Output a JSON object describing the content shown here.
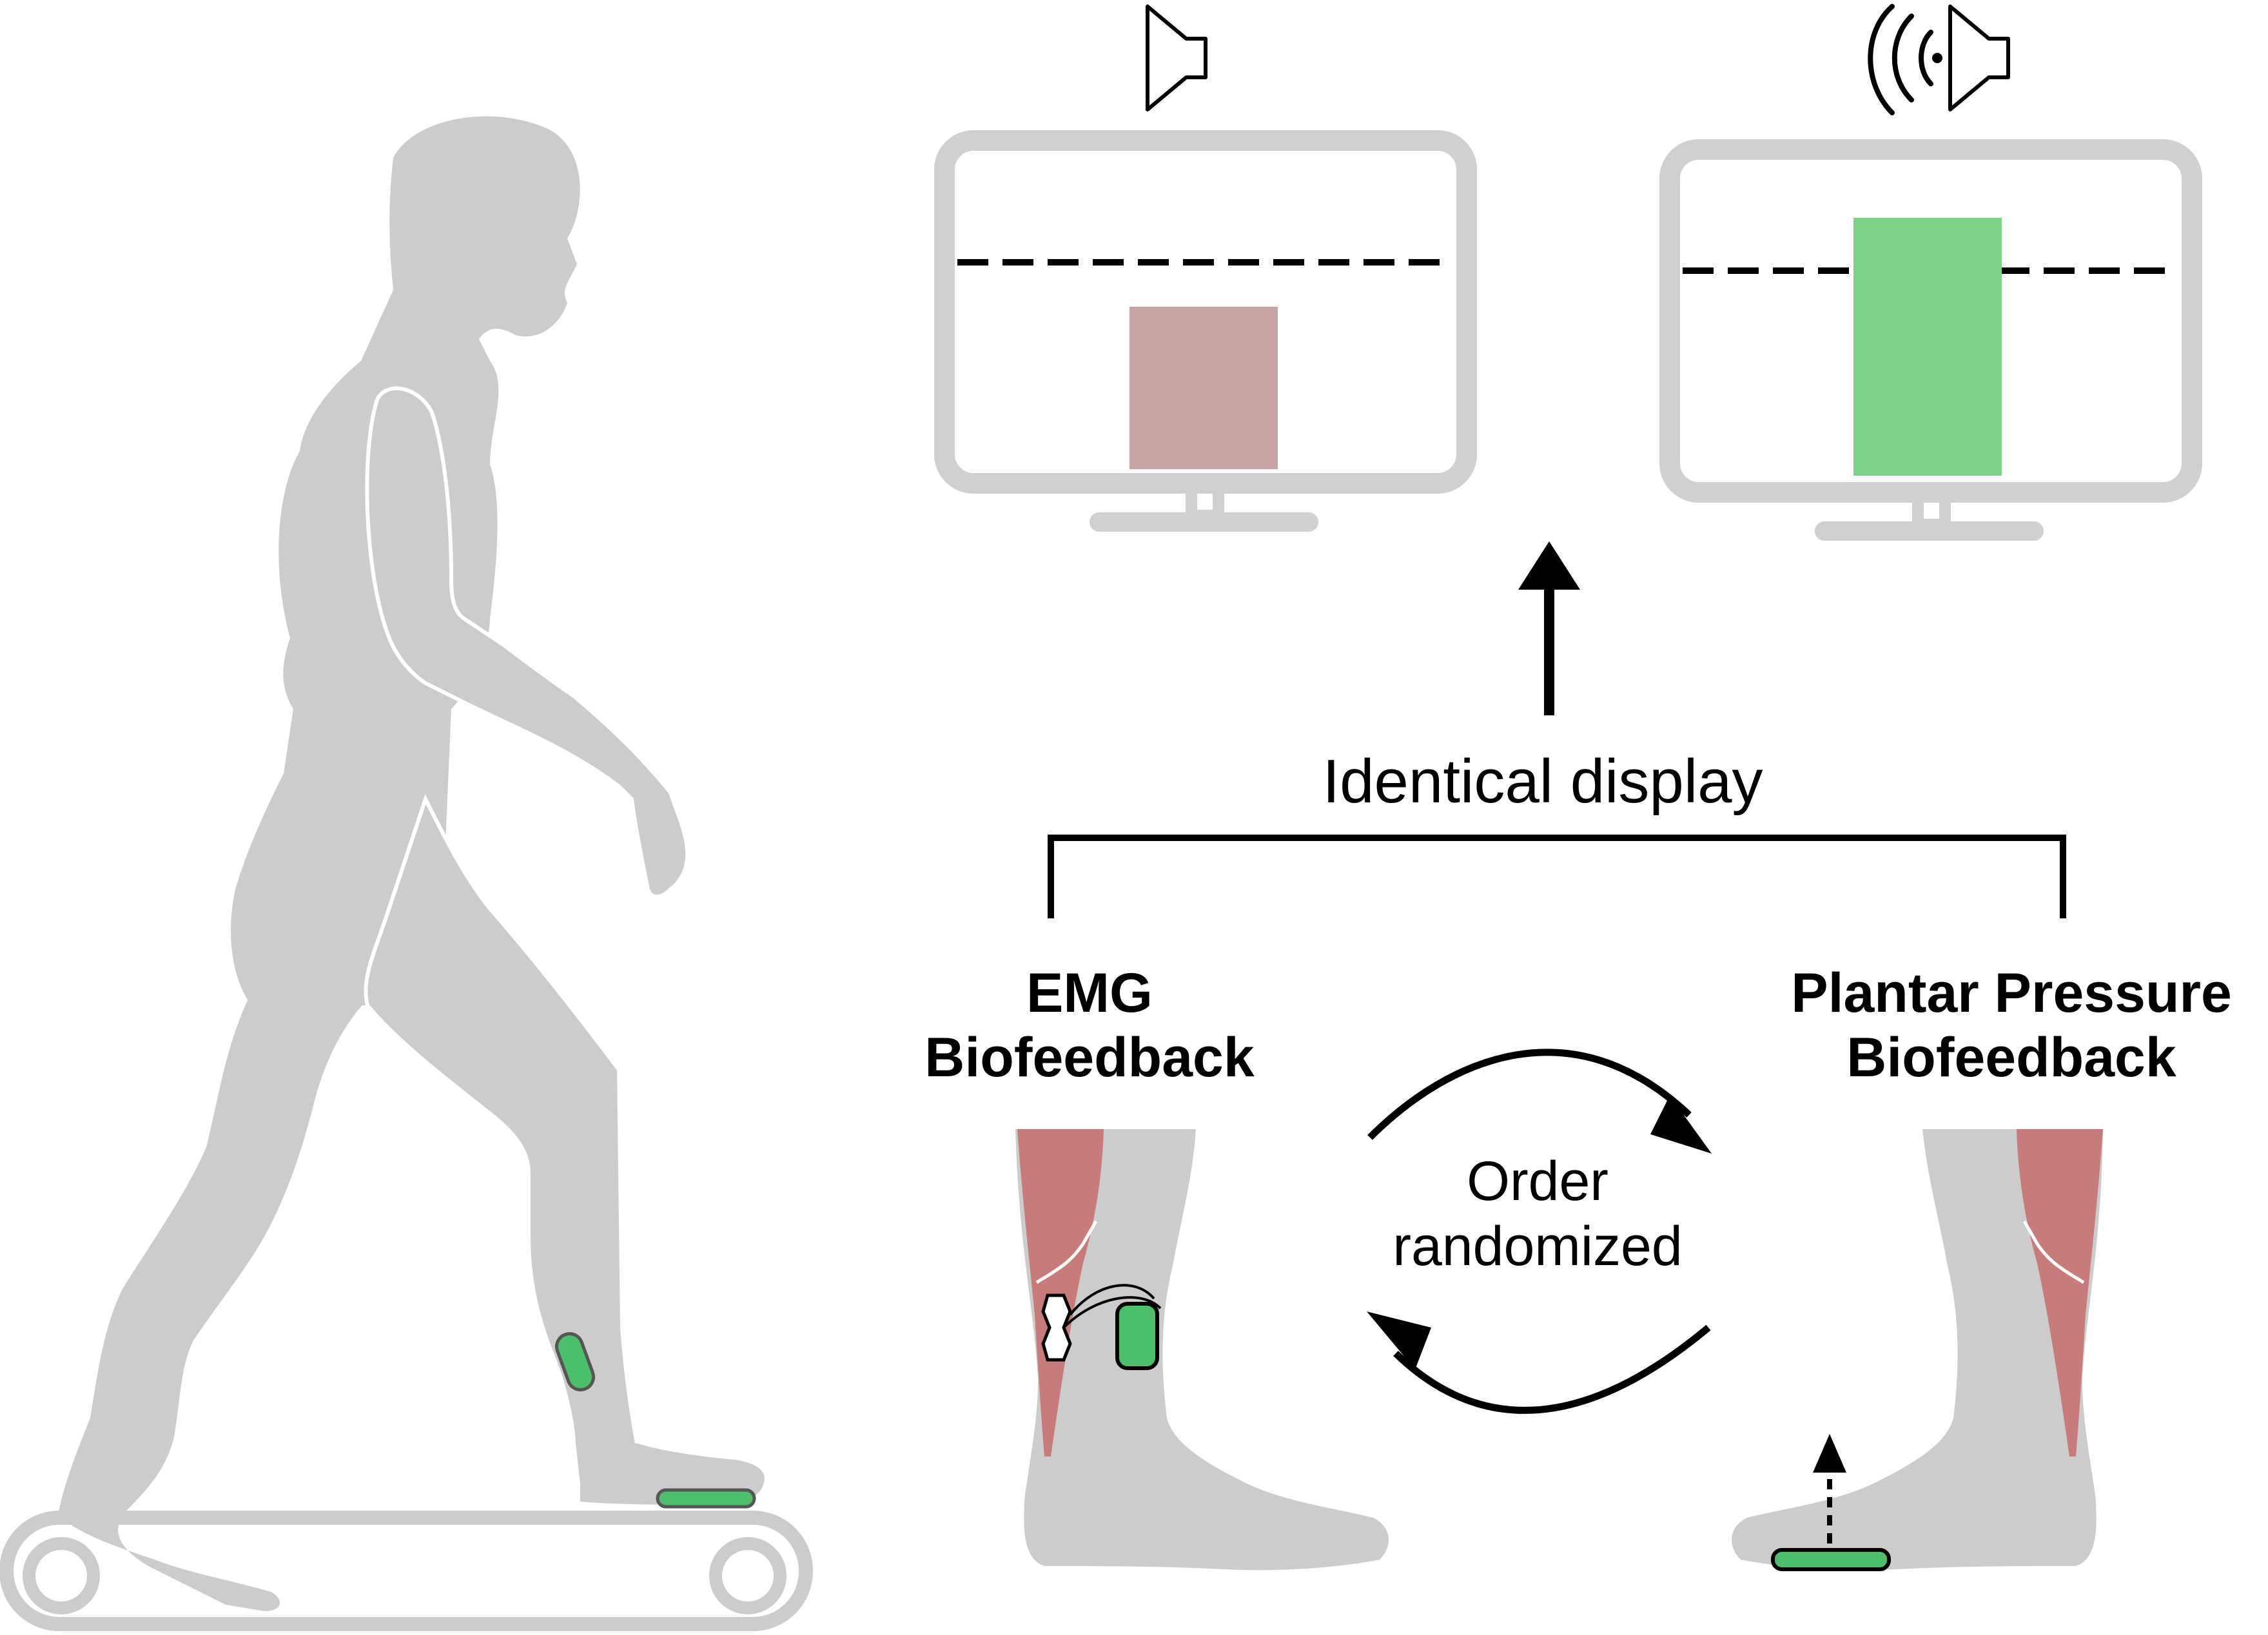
{
  "labels": {
    "identical_display": "Identical display",
    "emg_line1": "EMG",
    "emg_line2": "Biofeedback",
    "plantar_line1": "Plantar Pressure",
    "plantar_line2": "Biofeedback",
    "order_line1": "Order",
    "order_line2": "randomized"
  },
  "displays": [
    {
      "name": "emg-display",
      "bar_level": 0.63,
      "bar_color": "#c8a3a3",
      "sound": "speaker-muted"
    },
    {
      "name": "plantar-display",
      "bar_level": 1.0,
      "bar_color": "#7dd28a",
      "sound": "speaker-active"
    }
  ],
  "colors": {
    "body": "#cccccc",
    "muscle": "#c77b7b",
    "sensor": "#4bbf6b",
    "monitor_frame": "#d0d0d0",
    "line": "#000000"
  }
}
